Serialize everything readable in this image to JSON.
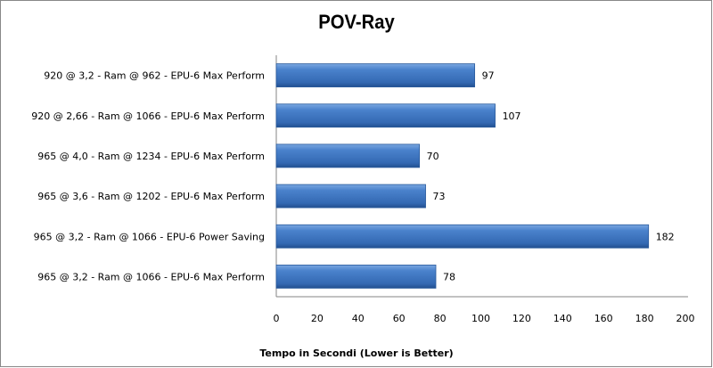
{
  "chart_data": {
    "type": "bar",
    "orientation": "horizontal",
    "title": "POV-Ray",
    "xlabel": "Tempo in Secondi (Lower is Better)",
    "ylabel": "",
    "categories": [
      "920 @ 3,2 - Ram @ 962 - EPU-6 Max Perform",
      "920 @ 2,66 - Ram @ 1066 - EPU-6 Max Perform",
      "965 @ 4,0 - Ram @ 1234 - EPU-6 Max Perform",
      "965 @ 3,6 - Ram @ 1202 - EPU-6 Max Perform",
      "965 @ 3,2 - Ram @ 1066 - EPU-6 Power Saving",
      "965 @ 3,2 - Ram @ 1066 - EPU-6 Max Perform"
    ],
    "values": [
      97,
      107,
      70,
      73,
      182,
      78
    ],
    "xlim": [
      0,
      200
    ],
    "xticks": [
      0,
      20,
      40,
      60,
      80,
      100,
      120,
      140,
      160,
      180,
      200
    ],
    "grid": false,
    "legend": "none",
    "bar_color": "#3f77c2",
    "data_labels": true
  }
}
